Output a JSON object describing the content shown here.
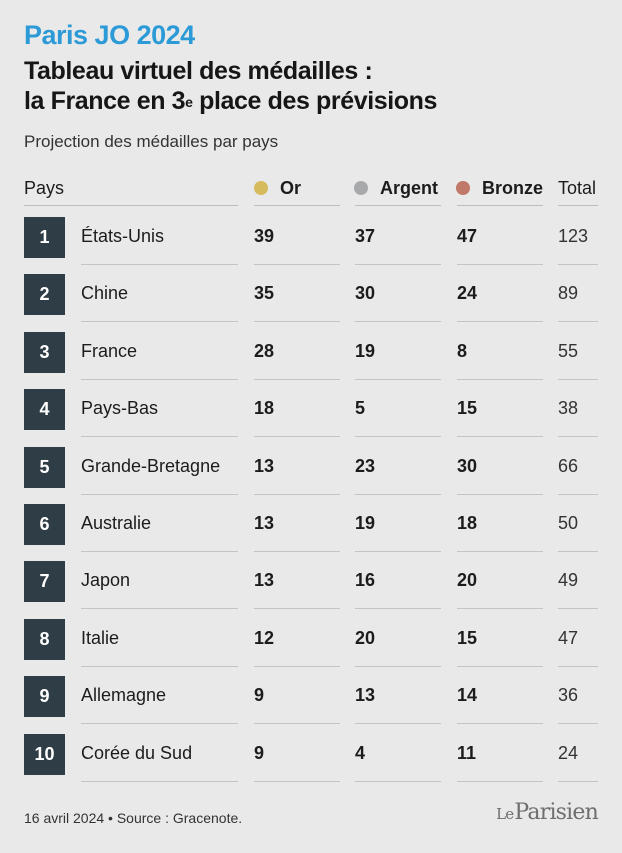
{
  "header": {
    "kicker": "Paris JO 2024",
    "headline_line1": "Tableau virtuel des médailles :",
    "headline_line2_a": "la France en 3",
    "headline_sup": "e",
    "headline_line2_b": " place des prévisions",
    "subtitle": "Projection des médailles par pays"
  },
  "colors": {
    "gold": "#d5bb5c",
    "silver": "#a7a9ab",
    "bronze": "#c07868",
    "rank_box": "#2f3d46",
    "kicker": "#2b9ad6"
  },
  "chart_data": {
    "type": "table",
    "columns": [
      "Pays",
      "Or",
      "Argent",
      "Bronze",
      "Total"
    ],
    "rows": [
      {
        "rank": "1",
        "country": "États-Unis",
        "gold": "39",
        "silver": "37",
        "bronze": "47",
        "total": "123"
      },
      {
        "rank": "2",
        "country": "Chine",
        "gold": "35",
        "silver": "30",
        "bronze": "24",
        "total": "89"
      },
      {
        "rank": "3",
        "country": "France",
        "gold": "28",
        "silver": "19",
        "bronze": "8",
        "total": "55"
      },
      {
        "rank": "4",
        "country": "Pays-Bas",
        "gold": "18",
        "silver": "5",
        "bronze": "15",
        "total": "38"
      },
      {
        "rank": "5",
        "country": "Grande-Bretagne",
        "gold": "13",
        "silver": "23",
        "bronze": "30",
        "total": "66"
      },
      {
        "rank": "6",
        "country": "Australie",
        "gold": "13",
        "silver": "19",
        "bronze": "18",
        "total": "50"
      },
      {
        "rank": "7",
        "country": "Japon",
        "gold": "13",
        "silver": "16",
        "bronze": "20",
        "total": "49"
      },
      {
        "rank": "8",
        "country": "Italie",
        "gold": "12",
        "silver": "20",
        "bronze": "15",
        "total": "47"
      },
      {
        "rank": "9",
        "country": "Allemagne",
        "gold": "9",
        "silver": "13",
        "bronze": "14",
        "total": "36"
      },
      {
        "rank": "10",
        "country": "Corée du Sud",
        "gold": "9",
        "silver": "4",
        "bronze": "11",
        "total": "24"
      }
    ]
  },
  "footer": {
    "source": "16 avril 2024 • Source : Gracenote.",
    "logo_le": "Le",
    "logo_name": "Parisien"
  }
}
